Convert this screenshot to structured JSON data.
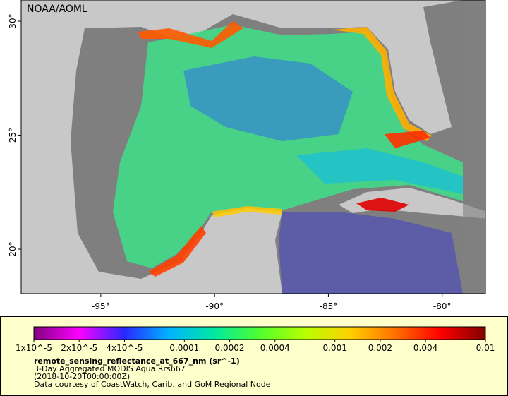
{
  "map": {
    "credit": "NOAA/AOML",
    "xlim": [
      -98.5,
      -78.1
    ],
    "ylim": [
      18.05,
      30.93
    ],
    "xticks": [
      {
        "value": -95,
        "label": "-95°"
      },
      {
        "value": -90,
        "label": "-90°"
      },
      {
        "value": -85,
        "label": "-85°"
      },
      {
        "value": -80,
        "label": "-80°"
      }
    ],
    "yticks": [
      {
        "value": 20,
        "label": "20°"
      },
      {
        "value": 25,
        "label": "25°"
      },
      {
        "value": 30,
        "label": "30°"
      }
    ]
  },
  "colorbar": {
    "scale": "log",
    "lim": [
      1e-05,
      0.01
    ],
    "colors": [
      "#800080",
      "#ff00ff",
      "#2828ff",
      "#00b4ff",
      "#00e8a0",
      "#50ff30",
      "#b8ff00",
      "#ffd000",
      "#ff7000",
      "#ff0000",
      "#800000"
    ],
    "ticks": [
      {
        "value": 1e-05,
        "label": "1x10^-5"
      },
      {
        "value": 2e-05,
        "label": "2x10^-5"
      },
      {
        "value": 4e-05,
        "label": "4x10^-5"
      },
      {
        "value": 0.0001,
        "label": "0.0001"
      },
      {
        "value": 0.0002,
        "label": "0.0002"
      },
      {
        "value": 0.0004,
        "label": "0.0004"
      },
      {
        "value": 0.001,
        "label": "0.001"
      },
      {
        "value": 0.002,
        "label": "0.002"
      },
      {
        "value": 0.004,
        "label": "0.004"
      },
      {
        "value": 0.01,
        "label": "0.01"
      }
    ]
  },
  "caption": {
    "variable": "remote_sensing_reflectance_at_667_nm (sr^-1)",
    "dataset": "3-Day Aggregated MODIS Aqua Rrs667",
    "time": "(2018-10-20T00:00:00Z)",
    "credit": "Data courtesy of CoastWatch, Carib. and GoM Regional Node"
  }
}
